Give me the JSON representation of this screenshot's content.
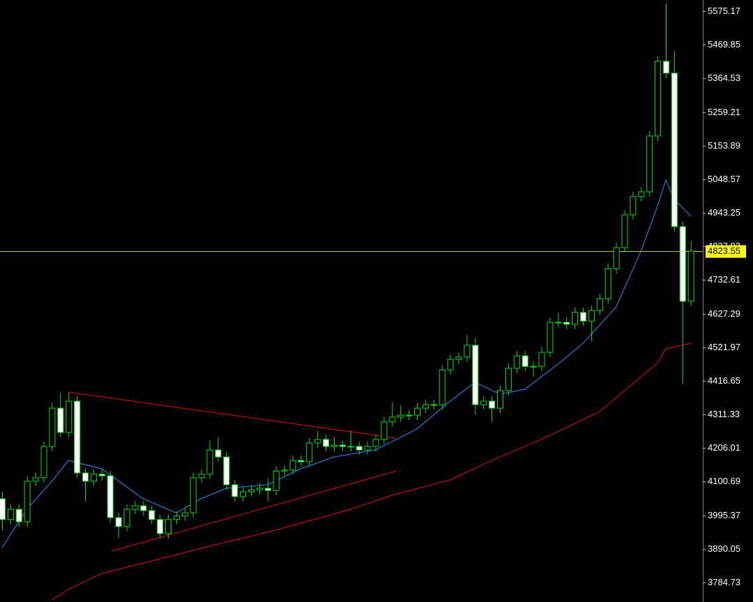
{
  "chart_data": {
    "type": "candlestick",
    "ylim": [
      3723.5,
      5610.2
    ],
    "yticks": [
      5575.17,
      5469.85,
      5364.53,
      5259.21,
      5153.89,
      5048.57,
      4943.25,
      4837.93,
      4732.61,
      4627.29,
      4521.97,
      4416.65,
      4311.33,
      4206.01,
      4100.69,
      3995.37,
      3890.05,
      3784.73
    ],
    "up_color": "#000000",
    "down_color": "#ffffff",
    "wick_color": "#00e000",
    "open": [
      4047,
      3982,
      4014,
      3975,
      4102,
      4113,
      4211,
      4331,
      4255,
      4353,
      4128,
      4102,
      4124,
      4119,
      3988,
      3960,
      4014,
      4025,
      4010,
      3982,
      3938,
      3982,
      3993,
      4003,
      4113,
      4124,
      4200,
      4178,
      4091,
      4054,
      4069,
      4075,
      4080,
      4073,
      4134,
      4137,
      4167,
      4163,
      4222,
      4233,
      4211,
      4215,
      4211,
      4211,
      4200,
      4211,
      4233,
      4288,
      4303,
      4309,
      4309,
      4331,
      4342,
      4342,
      4451,
      4484,
      4491,
      4528,
      4342,
      4353,
      4331,
      4386,
      4456,
      4495,
      4462,
      4462,
      4506,
      4600,
      4600,
      4594,
      4631,
      4604,
      4637,
      4674,
      4768,
      4834,
      4937,
      4994,
      5009,
      5184,
      5418,
      5381,
      4900,
      4666
    ],
    "high": [
      4069,
      4029,
      4029,
      4117,
      4128,
      4226,
      4346,
      4380,
      4378,
      4368,
      4143,
      4139,
      4139,
      4134,
      4003,
      4029,
      4040,
      4040,
      4025,
      3997,
      3997,
      4008,
      4018,
      4128,
      4139,
      4230,
      4240,
      4193,
      4106,
      4084,
      4090,
      4095,
      4110,
      4149,
      4152,
      4182,
      4182,
      4237,
      4260,
      4248,
      4240,
      4230,
      4260,
      4226,
      4226,
      4248,
      4303,
      4350,
      4340,
      4324,
      4346,
      4357,
      4357,
      4466,
      4499,
      4506,
      4560,
      4550,
      4368,
      4368,
      4401,
      4471,
      4510,
      4510,
      4477,
      4521,
      4615,
      4630,
      4615,
      4646,
      4646,
      4652,
      4689,
      4783,
      4849,
      4952,
      5009,
      5024,
      5199,
      5433,
      5599,
      5450,
      4915,
      4855
    ],
    "low": [
      3949,
      3967,
      3960,
      3960,
      4087,
      4098,
      4196,
      4240,
      4240,
      4113,
      4040,
      4087,
      4104,
      3973,
      3925,
      3945,
      3999,
      3995,
      3967,
      3923,
      3923,
      3967,
      3978,
      3988,
      4098,
      4109,
      4163,
      4076,
      4039,
      4039,
      4054,
      4060,
      4040,
      4058,
      4119,
      4122,
      4148,
      4148,
      4207,
      4196,
      4196,
      4196,
      4196,
      4185,
      4185,
      4196,
      4218,
      4273,
      4288,
      4294,
      4294,
      4316,
      4327,
      4327,
      4436,
      4469,
      4476,
      4310,
      4327,
      4290,
      4316,
      4371,
      4441,
      4447,
      4430,
      4447,
      4491,
      4585,
      4579,
      4579,
      4589,
      4540,
      4622,
      4659,
      4753,
      4819,
      4922,
      4979,
      4994,
      5169,
      5366,
      4885,
      4408,
      4651
    ],
    "close": [
      3982,
      4014,
      3975,
      4102,
      4113,
      4211,
      4331,
      4255,
      4353,
      4128,
      4102,
      4124,
      4119,
      3988,
      3960,
      4014,
      4025,
      4010,
      3982,
      3938,
      3982,
      3993,
      4003,
      4113,
      4124,
      4200,
      4178,
      4091,
      4054,
      4069,
      4075,
      4080,
      4073,
      4134,
      4137,
      4167,
      4163,
      4222,
      4233,
      4211,
      4215,
      4211,
      4211,
      4200,
      4211,
      4233,
      4288,
      4303,
      4309,
      4309,
      4331,
      4342,
      4342,
      4451,
      4484,
      4491,
      4528,
      4342,
      4353,
      4331,
      4386,
      4456,
      4495,
      4462,
      4462,
      4506,
      4600,
      4600,
      4594,
      4631,
      4604,
      4637,
      4674,
      4768,
      4834,
      4937,
      4994,
      5009,
      5184,
      5418,
      5381,
      4900,
      4666,
      4823.55
    ],
    "lines": [
      {
        "color": "#1e90ff",
        "x": [
          0,
          3,
          6,
          8,
          12,
          17,
          21,
          24,
          27,
          32,
          36,
          40,
          45,
          50,
          54,
          57,
          60,
          63,
          67,
          70,
          74,
          77,
          79,
          80,
          81,
          83
        ],
        "values": [
          3894,
          4014,
          4102,
          4167,
          4141,
          4047,
          4003,
          4047,
          4080,
          4091,
          4141,
          4178,
          4200,
          4266,
          4353,
          4412,
          4375,
          4390,
          4469,
          4534,
          4648,
          4823,
          4965,
          5046,
          4987,
          4932
        ]
      },
      {
        "color": "#dd1111",
        "x": [
          6,
          8,
          12,
          21,
          26,
          33,
          42,
          47,
          54,
          59,
          65,
          72,
          75,
          79,
          80,
          83
        ],
        "values": [
          3730,
          3763,
          3813,
          3872,
          3905,
          3949,
          4014,
          4058,
          4106,
          4167,
          4233,
          4320,
          4386,
          4473,
          4517,
          4534
        ]
      }
    ],
    "trendlines": [
      {
        "color": "#dd1111",
        "x": [
          8,
          47.5
        ],
        "values": [
          4381,
          4237
        ]
      },
      {
        "color": "#dd1111",
        "x": [
          13.2,
          47.5
        ],
        "values": [
          3883,
          4134
        ]
      }
    ],
    "price_line": {
      "value": 4823.55,
      "color": "#c8c800"
    }
  }
}
